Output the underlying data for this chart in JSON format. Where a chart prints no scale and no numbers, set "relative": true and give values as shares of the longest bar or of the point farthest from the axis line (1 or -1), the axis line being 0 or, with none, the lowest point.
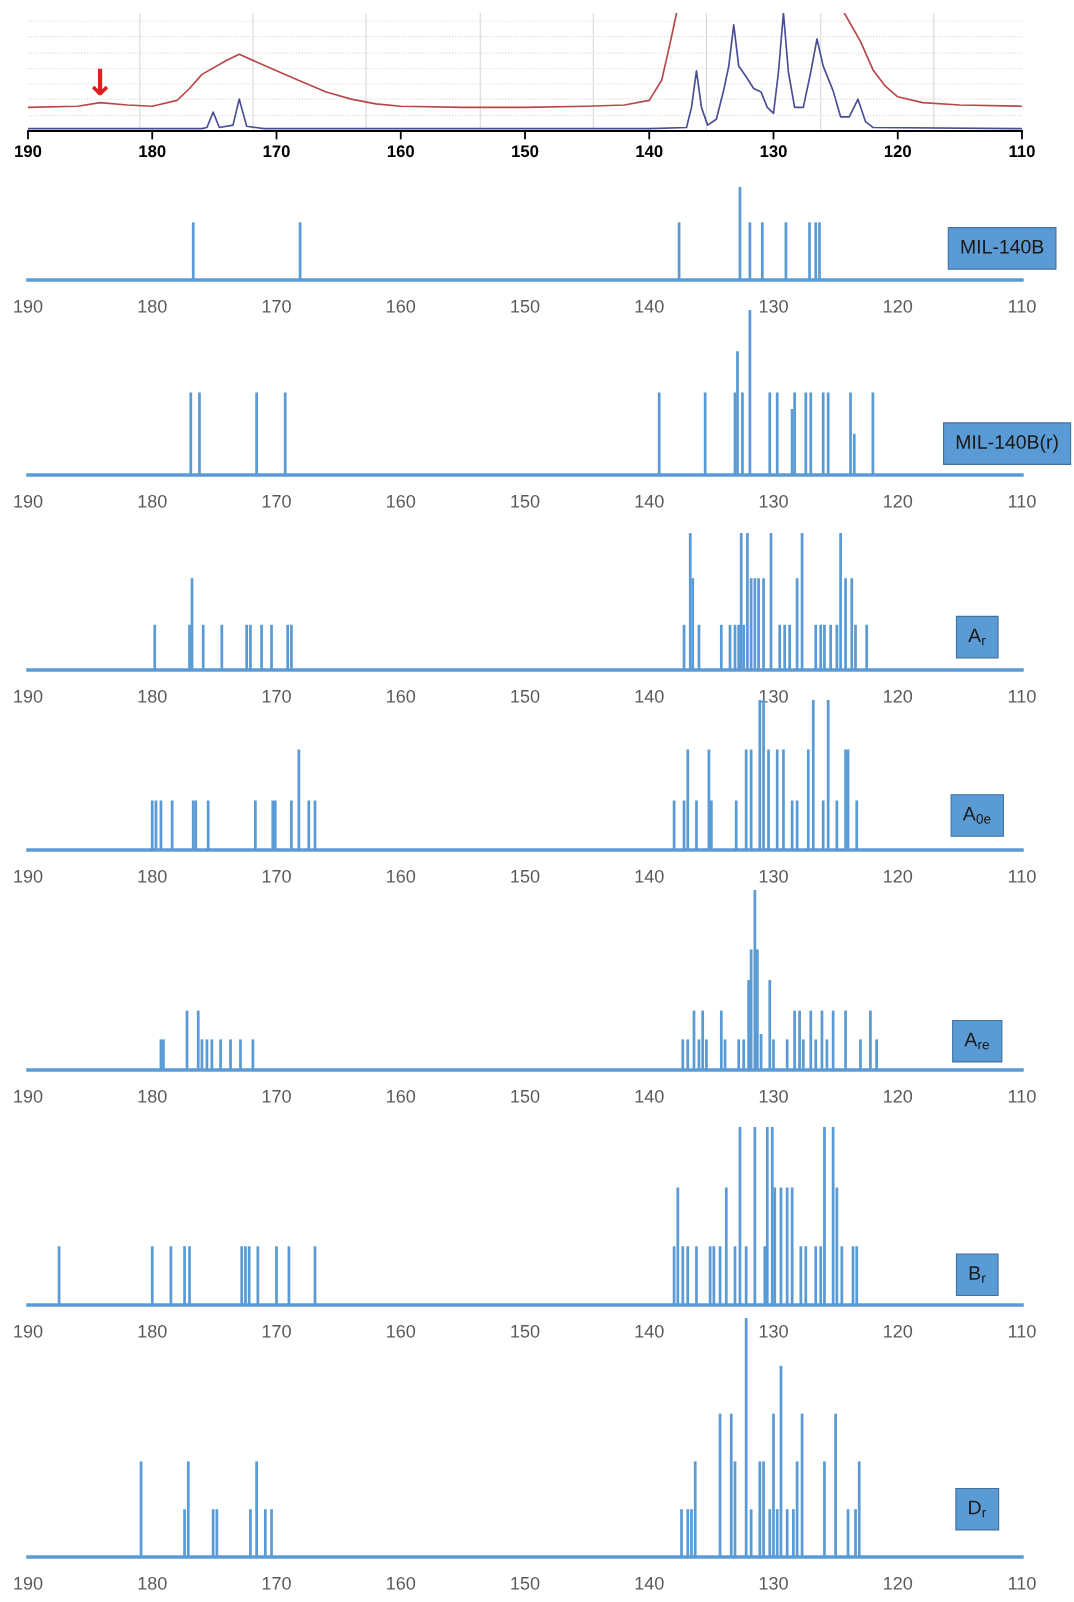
{
  "chart_data": [
    {
      "type": "line",
      "relative": true,
      "xlim": [
        190,
        110
      ],
      "xticks": [
        190,
        180,
        170,
        160,
        150,
        140,
        130,
        120,
        110
      ],
      "series": [
        {
          "color": "#b8474a",
          "x": [
            190,
            186,
            184.2,
            182,
            180,
            178,
            177,
            176,
            174,
            173,
            170,
            168,
            166,
            164,
            162,
            160,
            155,
            150,
            145,
            142,
            140,
            139,
            138.5,
            138,
            137.8,
            130,
            124.3,
            123,
            122,
            121,
            120,
            118,
            115,
            110
          ],
          "values": [
            0.2,
            0.21,
            0.24,
            0.22,
            0.21,
            0.26,
            0.36,
            0.48,
            0.6,
            0.65,
            0.51,
            0.42,
            0.33,
            0.27,
            0.23,
            0.21,
            0.2,
            0.2,
            0.21,
            0.22,
            0.26,
            0.43,
            0.66,
            0.9,
            1.0,
            null,
            1.0,
            0.76,
            0.52,
            0.38,
            0.29,
            0.24,
            0.22,
            0.21
          ]
        },
        {
          "color": "#4a4e96",
          "x": [
            190,
            176,
            175.6,
            175.1,
            174.6,
            173.5,
            173.0,
            172.4,
            171,
            140,
            137,
            136.6,
            136.2,
            135.8,
            135.3,
            134.6,
            134,
            133.6,
            133.2,
            132.8,
            132.2,
            131.6,
            131.0,
            130.5,
            130.0,
            129.6,
            129.2,
            128.8,
            128.3,
            127.6,
            127.0,
            126.5,
            126.0,
            125.2,
            124.6,
            123.9,
            123.2,
            122.6,
            122.0,
            110
          ],
          "values": [
            0.02,
            0.02,
            0.03,
            0.16,
            0.03,
            0.05,
            0.27,
            0.04,
            0.02,
            0.02,
            0.03,
            0.2,
            0.51,
            0.2,
            0.05,
            0.1,
            0.35,
            0.55,
            0.9,
            0.55,
            0.46,
            0.36,
            0.33,
            0.2,
            0.15,
            0.5,
            1.0,
            0.5,
            0.2,
            0.2,
            0.5,
            0.78,
            0.55,
            0.34,
            0.12,
            0.12,
            0.27,
            0.08,
            0.03,
            0.02
          ]
        }
      ],
      "ref_lines": [
        {
          "axis": "x",
          "value": 181.0,
          "color": "#d9d9d9",
          "line_style": "solid"
        },
        {
          "axis": "x",
          "value": 171.9,
          "color": "#d9d9d9",
          "line_style": "solid"
        },
        {
          "axis": "x",
          "value": 162.8,
          "color": "#d9d9d9",
          "line_style": "solid"
        },
        {
          "axis": "x",
          "value": 153.6,
          "color": "#d9d9d9",
          "line_style": "solid"
        },
        {
          "axis": "x",
          "value": 144.5,
          "color": "#d9d9d9",
          "line_style": "solid"
        },
        {
          "axis": "x",
          "value": 135.4,
          "color": "#d9d9d9",
          "line_style": "solid"
        },
        {
          "axis": "x",
          "value": 126.2,
          "color": "#d9d9d9",
          "line_style": "solid"
        },
        {
          "axis": "x",
          "value": 117.1,
          "color": "#d9d9d9",
          "line_style": "solid"
        },
        {
          "axis": "y",
          "value": 0.13,
          "color": "#d9d9d9",
          "line_style": "dotted"
        },
        {
          "axis": "y",
          "value": 0.27,
          "color": "#d9d9d9",
          "line_style": "dotted"
        },
        {
          "axis": "y",
          "value": 0.4,
          "color": "#d9d9d9",
          "line_style": "dotted"
        },
        {
          "axis": "y",
          "value": 0.53,
          "color": "#d9d9d9",
          "line_style": "dotted"
        },
        {
          "axis": "y",
          "value": 0.66,
          "color": "#d9d9d9",
          "line_style": "dotted"
        },
        {
          "axis": "y",
          "value": 0.8,
          "color": "#d9d9d9",
          "line_style": "dotted"
        },
        {
          "axis": "y",
          "value": 0.93,
          "color": "#d9d9d9",
          "line_style": "dotted"
        }
      ],
      "annotations": [
        {
          "text": "↓",
          "x": 184.2,
          "y": 0.24
        }
      ]
    },
    {
      "type": "bar",
      "relative": true,
      "color": "#5b9bd5",
      "xlim": [
        190,
        110
      ],
      "xticks": [
        190,
        180,
        170,
        160,
        150,
        140,
        130,
        120,
        110
      ],
      "annotations": [
        "MIL-140B"
      ],
      "x": [
        176.7,
        168.1,
        137.6,
        132.7,
        131.9,
        130.9,
        129.0,
        127.1,
        126.6,
        126.3
      ],
      "values": [
        0.62,
        0.62,
        0.62,
        1.0,
        0.62,
        0.62,
        0.62,
        0.62,
        0.62,
        0.62
      ]
    },
    {
      "type": "bar",
      "relative": true,
      "color": "#5b9bd5",
      "xlim": [
        190,
        110
      ],
      "xticks": [
        190,
        180,
        170,
        160,
        150,
        140,
        130,
        120,
        110
      ],
      "annotations": [
        "MIL-140B(r)"
      ],
      "x": [
        176.9,
        176.2,
        171.6,
        169.3,
        139.2,
        135.5,
        133.1,
        132.9,
        132.5,
        131.9,
        130.3,
        129.7,
        128.5,
        128.3,
        127.4,
        127.0,
        126.0,
        125.6,
        123.8,
        123.5,
        122.0
      ],
      "values": [
        0.5,
        0.5,
        0.5,
        0.5,
        0.5,
        0.5,
        0.5,
        0.75,
        0.5,
        1.0,
        0.5,
        0.5,
        0.4,
        0.5,
        0.5,
        0.5,
        0.5,
        0.5,
        0.5,
        0.25,
        0.5
      ]
    },
    {
      "type": "bar",
      "relative": true,
      "color": "#5b9bd5",
      "xlim": [
        190,
        110
      ],
      "xticks": [
        190,
        180,
        170,
        160,
        150,
        140,
        130,
        120,
        110
      ],
      "annotations": [
        "A$_{r}$"
      ],
      "x": [
        179.8,
        177.0,
        176.8,
        175.9,
        174.4,
        172.4,
        172.1,
        171.2,
        170.4,
        169.1,
        168.8,
        137.2,
        136.7,
        136.5,
        136.0,
        134.2,
        133.5,
        133.1,
        132.8,
        132.6,
        132.4,
        132.1,
        131.8,
        131.5,
        131.2,
        130.8,
        130.2,
        129.5,
        129.1,
        128.7,
        128.1,
        127.7,
        126.6,
        126.2,
        125.9,
        125.4,
        124.9,
        124.6,
        124.2,
        123.7,
        123.4,
        122.5
      ],
      "values": [
        0.33,
        0.33,
        0.67,
        0.33,
        0.33,
        0.33,
        0.33,
        0.33,
        0.33,
        0.33,
        0.33,
        0.33,
        1.0,
        0.67,
        0.33,
        0.33,
        0.33,
        0.33,
        0.33,
        1.0,
        0.33,
        1.0,
        0.67,
        0.67,
        0.67,
        0.67,
        1.0,
        0.33,
        0.33,
        0.33,
        0.67,
        1.0,
        0.33,
        0.33,
        0.33,
        0.33,
        0.33,
        1.0,
        0.67,
        0.67,
        0.33,
        0.33
      ]
    },
    {
      "type": "bar",
      "relative": true,
      "color": "#5b9bd5",
      "xlim": [
        190,
        110
      ],
      "xticks": [
        190,
        180,
        170,
        160,
        150,
        140,
        130,
        120,
        110
      ],
      "annotations": [
        "A$_{0e}$"
      ],
      "x": [
        180.0,
        179.7,
        179.3,
        178.4,
        176.7,
        176.5,
        175.5,
        171.7,
        170.3,
        170.1,
        168.8,
        168.2,
        167.4,
        166.9,
        138.0,
        137.2,
        136.9,
        136.2,
        135.2,
        135.0,
        133.0,
        132.2,
        131.8,
        131.1,
        130.8,
        130.4,
        129.7,
        129.2,
        128.5,
        128.1,
        127.2,
        126.8,
        126.0,
        125.6,
        124.9,
        124.2,
        124.0,
        123.3
      ],
      "values": [
        0.33,
        0.33,
        0.33,
        0.33,
        0.33,
        0.33,
        0.33,
        0.33,
        0.33,
        0.33,
        0.33,
        0.67,
        0.33,
        0.33,
        0.33,
        0.33,
        0.67,
        0.33,
        0.67,
        0.33,
        0.33,
        0.67,
        0.67,
        1.0,
        1.0,
        0.67,
        0.67,
        0.67,
        0.33,
        0.33,
        0.67,
        1.0,
        0.33,
        1.0,
        0.33,
        0.67,
        0.67,
        0.33
      ]
    },
    {
      "type": "bar",
      "relative": true,
      "color": "#5b9bd5",
      "xlim": [
        190,
        110
      ],
      "xticks": [
        190,
        180,
        170,
        160,
        150,
        140,
        130,
        120,
        110
      ],
      "annotations": [
        "A$_{re}$"
      ],
      "x": [
        179.3,
        179.1,
        177.2,
        176.3,
        176.0,
        175.6,
        175.2,
        174.5,
        173.7,
        172.9,
        171.9,
        137.3,
        136.9,
        136.4,
        136.0,
        135.7,
        135.4,
        134.2,
        133.9,
        132.8,
        132.4,
        132.0,
        131.8,
        131.5,
        131.3,
        131.0,
        130.3,
        130.0,
        128.9,
        128.3,
        127.9,
        127.6,
        127.0,
        126.6,
        126.1,
        125.7,
        125.2,
        124.2,
        123.0,
        122.2,
        121.7
      ],
      "values": [
        0.17,
        0.17,
        0.33,
        0.33,
        0.17,
        0.17,
        0.17,
        0.17,
        0.17,
        0.17,
        0.17,
        0.17,
        0.17,
        0.33,
        0.17,
        0.33,
        0.17,
        0.33,
        0.17,
        0.17,
        0.17,
        0.5,
        0.67,
        1.0,
        0.67,
        0.2,
        0.5,
        0.17,
        0.17,
        0.33,
        0.33,
        0.17,
        0.33,
        0.17,
        0.33,
        0.17,
        0.33,
        0.33,
        0.17,
        0.33,
        0.17
      ]
    },
    {
      "type": "bar",
      "relative": true,
      "color": "#5b9bd5",
      "xlim": [
        190,
        110
      ],
      "xticks": [
        190,
        180,
        170,
        160,
        150,
        140,
        130,
        120,
        110
      ],
      "annotations": [
        "B$_{r}$"
      ],
      "x": [
        187.5,
        180.0,
        178.5,
        177.4,
        177.0,
        172.8,
        172.5,
        172.2,
        171.5,
        170.0,
        169.0,
        166.9,
        138.0,
        137.7,
        137.3,
        136.9,
        136.2,
        135.1,
        134.8,
        134.3,
        133.8,
        133.1,
        132.7,
        132.2,
        131.5,
        130.7,
        130.5,
        130.1,
        129.9,
        129.4,
        128.9,
        128.5,
        127.8,
        127.4,
        126.6,
        126.2,
        125.9,
        125.2,
        124.9,
        124.5,
        123.6,
        123.3
      ],
      "values": [
        0.33,
        0.33,
        0.33,
        0.33,
        0.33,
        0.33,
        0.33,
        0.33,
        0.33,
        0.33,
        0.33,
        0.33,
        0.33,
        0.66,
        0.33,
        0.33,
        0.33,
        0.33,
        0.33,
        0.33,
        0.66,
        0.33,
        1.0,
        0.33,
        1.0,
        0.33,
        1.0,
        1.0,
        0.66,
        0.66,
        0.66,
        0.66,
        0.33,
        0.33,
        0.33,
        0.33,
        1.0,
        1.0,
        0.66,
        0.33,
        0.33,
        0.33
      ]
    },
    {
      "type": "bar",
      "relative": true,
      "color": "#5b9bd5",
      "xlim": [
        190,
        110
      ],
      "xticks": [
        190,
        180,
        170,
        160,
        150,
        140,
        130,
        120,
        110
      ],
      "annotations": [
        "D$_{r}$"
      ],
      "x": [
        180.9,
        177.4,
        177.1,
        175.1,
        174.8,
        172.1,
        171.6,
        170.9,
        170.4,
        137.4,
        136.9,
        136.6,
        136.3,
        134.3,
        133.4,
        133.1,
        132.2,
        131.8,
        131.1,
        130.8,
        130.3,
        130.0,
        129.7,
        129.4,
        128.9,
        128.4,
        128.1,
        127.7,
        125.9,
        125.0,
        124.0,
        123.4,
        123.1
      ],
      "values": [
        0.4,
        0.2,
        0.4,
        0.2,
        0.2,
        0.2,
        0.4,
        0.2,
        0.2,
        0.2,
        0.2,
        0.2,
        0.4,
        0.6,
        0.6,
        0.4,
        1.0,
        0.2,
        0.4,
        0.4,
        0.2,
        0.6,
        0.2,
        0.8,
        0.2,
        0.2,
        0.4,
        0.6,
        0.4,
        0.6,
        0.2,
        0.2,
        0.4
      ]
    }
  ]
}
